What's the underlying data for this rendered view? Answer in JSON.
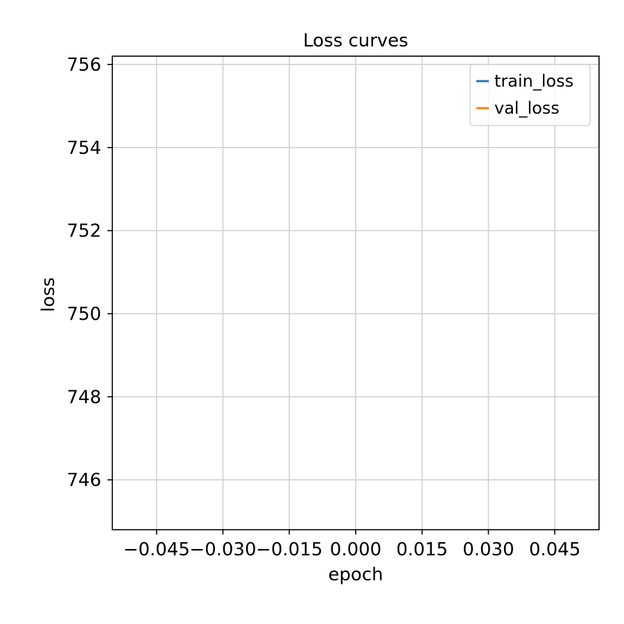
{
  "chart_data": {
    "type": "line",
    "title": "Loss curves",
    "xlabel": "epoch",
    "ylabel": "loss",
    "xlim": [
      -0.055,
      0.055
    ],
    "ylim": [
      744.8,
      756.2
    ],
    "x_ticks": [
      -0.045,
      -0.03,
      -0.015,
      0.0,
      0.015,
      0.03,
      0.045
    ],
    "x_tick_labels": [
      "−0.045",
      "−0.030",
      "−0.015",
      "0.000",
      "0.015",
      "0.030",
      "0.045"
    ],
    "y_ticks": [
      746,
      748,
      750,
      752,
      754,
      756
    ],
    "y_tick_labels": [
      "746",
      "748",
      "750",
      "752",
      "754",
      "756"
    ],
    "grid": true,
    "legend_position": "upper right",
    "series": [
      {
        "name": "train_loss",
        "color": "#1f77b4",
        "x": [],
        "y": []
      },
      {
        "name": "val_loss",
        "color": "#ff7f0e",
        "x": [],
        "y": []
      }
    ]
  }
}
